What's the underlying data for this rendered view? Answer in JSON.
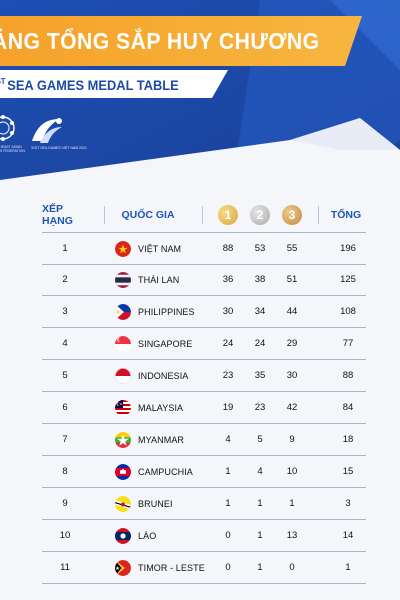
{
  "header": {
    "title": "ẢNG TỔNG SẮP HUY CHƯƠNG",
    "subtitle_sup": "ST",
    "subtitle": "SEA GAMES  MEDAL TABLE",
    "asean_logo_text": "SOUTHEAST ASIAN GAMES FEDERATION",
    "games_logo_text": "31ST SEA GAMES VIỆT NAM 2021",
    "colors": {
      "orange": "#f6a12a",
      "blue": "#1f55b8",
      "dark_blue": "#1a3f95"
    }
  },
  "table": {
    "headers": {
      "rank": "XẾP HẠNG",
      "country": "QUỐC GIA",
      "gold": "1",
      "silver": "2",
      "bronze": "3",
      "total": "TỔNG"
    },
    "rows": [
      {
        "rank": "1",
        "country": "VIỆT NAM",
        "flag": "vietnam-flag-icon",
        "gold": "88",
        "silver": "53",
        "bronze": "55",
        "total": "196"
      },
      {
        "rank": "2",
        "country": "THÁI LAN",
        "flag": "thailand-flag-icon",
        "gold": "36",
        "silver": "38",
        "bronze": "51",
        "total": "125"
      },
      {
        "rank": "3",
        "country": "PHILIPPINES",
        "flag": "philippines-flag-icon",
        "gold": "30",
        "silver": "34",
        "bronze": "44",
        "total": "108"
      },
      {
        "rank": "4",
        "country": "SINGAPORE",
        "flag": "singapore-flag-icon",
        "gold": "24",
        "silver": "24",
        "bronze": "29",
        "total": "77"
      },
      {
        "rank": "5",
        "country": "INDONESIA",
        "flag": "indonesia-flag-icon",
        "gold": "23",
        "silver": "35",
        "bronze": "30",
        "total": "88"
      },
      {
        "rank": "6",
        "country": "MALAYSIA",
        "flag": "malaysia-flag-icon",
        "gold": "19",
        "silver": "23",
        "bronze": "42",
        "total": "84"
      },
      {
        "rank": "7",
        "country": "MYANMAR",
        "flag": "myanmar-flag-icon",
        "gold": "4",
        "silver": "5",
        "bronze": "9",
        "total": "18"
      },
      {
        "rank": "8",
        "country": "CAMPUCHIA",
        "flag": "cambodia-flag-icon",
        "gold": "1",
        "silver": "4",
        "bronze": "10",
        "total": "15"
      },
      {
        "rank": "9",
        "country": "BRUNEI",
        "flag": "brunei-flag-icon",
        "gold": "1",
        "silver": "1",
        "bronze": "1",
        "total": "3"
      },
      {
        "rank": "10",
        "country": "LÀO",
        "flag": "laos-flag-icon",
        "gold": "0",
        "silver": "1",
        "bronze": "13",
        "total": "14"
      },
      {
        "rank": "11",
        "country": "TIMOR - LESTE",
        "flag": "timor-leste-flag-icon",
        "gold": "0",
        "silver": "1",
        "bronze": "0",
        "total": "1"
      }
    ]
  }
}
